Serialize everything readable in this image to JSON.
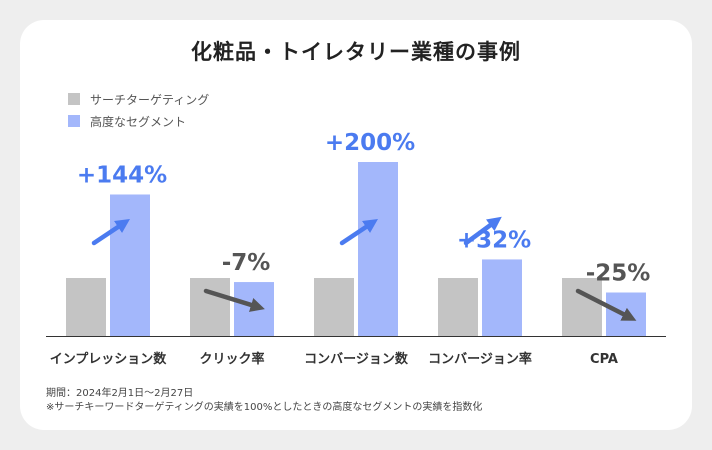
{
  "title": "化粧品・トイレタリー業種の事例",
  "colors": {
    "baseline": "#c4c4c4",
    "advanced": "#a3b7fb",
    "positive": "#4b7bf0",
    "negative": "#555555",
    "axis": "#333333"
  },
  "chart_data": {
    "type": "bar",
    "categories": [
      "インプレッション数",
      "クリック率",
      "コンバージョン数",
      "コンバージョン率",
      "CPA"
    ],
    "series": [
      {
        "name": "サーチターゲティング",
        "values": [
          100,
          100,
          100,
          100,
          100
        ]
      },
      {
        "name": "高度なセグメント",
        "values": [
          244,
          93,
          300,
          132,
          75
        ]
      }
    ],
    "data_labels": [
      "+144%",
      "-7%",
      "+200%",
      "+32%",
      "-25%"
    ],
    "ylim": [
      0,
      320
    ],
    "legend_position": "top-left",
    "grid": false
  },
  "footnotes": {
    "period": "期間：2024年2月1日〜2月27日",
    "note": "※サーチキーワードターゲティングの実績を100%としたときの高度なセグメントの実績を指数化"
  }
}
